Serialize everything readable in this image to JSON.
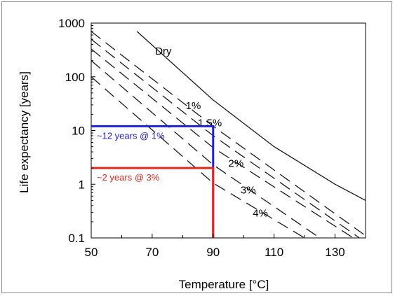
{
  "chart_data": {
    "type": "line",
    "title": "",
    "xlabel": "Temperature [°C]",
    "ylabel": "Life expectancy [years]",
    "xlim": [
      50,
      140
    ],
    "ylim": [
      0.1,
      1000
    ],
    "yscale": "log",
    "grid": false,
    "x_ticks": [
      50,
      70,
      90,
      110,
      130
    ],
    "x_tick_labels": [
      "50",
      "70",
      "90",
      "110",
      "130"
    ],
    "y_ticks": [
      0.1,
      1,
      10,
      100,
      1000
    ],
    "y_tick_labels": [
      "0.1",
      "1",
      "10",
      "100",
      "1000"
    ],
    "series": [
      {
        "name": "Dry",
        "style": "solid",
        "label_at": [
          71,
          260
        ],
        "points": [
          [
            65,
            700
          ],
          [
            90,
            37
          ],
          [
            110,
            5
          ],
          [
            130,
            1.0
          ],
          [
            140,
            0.5
          ]
        ]
      },
      {
        "name": "1%",
        "style": "dashed",
        "label_at": [
          81,
          25
        ],
        "points": [
          [
            50,
            700
          ],
          [
            90,
            12
          ],
          [
            140,
            0.11
          ]
        ]
      },
      {
        "name": "1.5%",
        "style": "dashed",
        "label_at": [
          85,
          12
        ],
        "points": [
          [
            50,
            500
          ],
          [
            90,
            8
          ],
          [
            138,
            0.1
          ]
        ]
      },
      {
        "name": "2%",
        "style": "dashed",
        "label_at": [
          95,
          2.1
        ],
        "points": [
          [
            50,
            330
          ],
          [
            90,
            4.8
          ],
          [
            136,
            0.1
          ]
        ]
      },
      {
        "name": "3%",
        "style": "dashed",
        "label_at": [
          99,
          0.67
        ],
        "points": [
          [
            50,
            200
          ],
          [
            90,
            2.3
          ],
          [
            125,
            0.1
          ]
        ]
      },
      {
        "name": "4%",
        "style": "dashed",
        "label_at": [
          103,
          0.25
        ],
        "points": [
          [
            50,
            100
          ],
          [
            90,
            1.05
          ],
          [
            120,
            0.1
          ]
        ]
      }
    ],
    "annotations": [
      {
        "text": "~12 years @ 1%",
        "color": "#1f1fd6",
        "x": 90,
        "y": 12
      },
      {
        "text": "~2 years @ 3%",
        "color": "#e8271c",
        "x": 90,
        "y": 2
      }
    ]
  }
}
